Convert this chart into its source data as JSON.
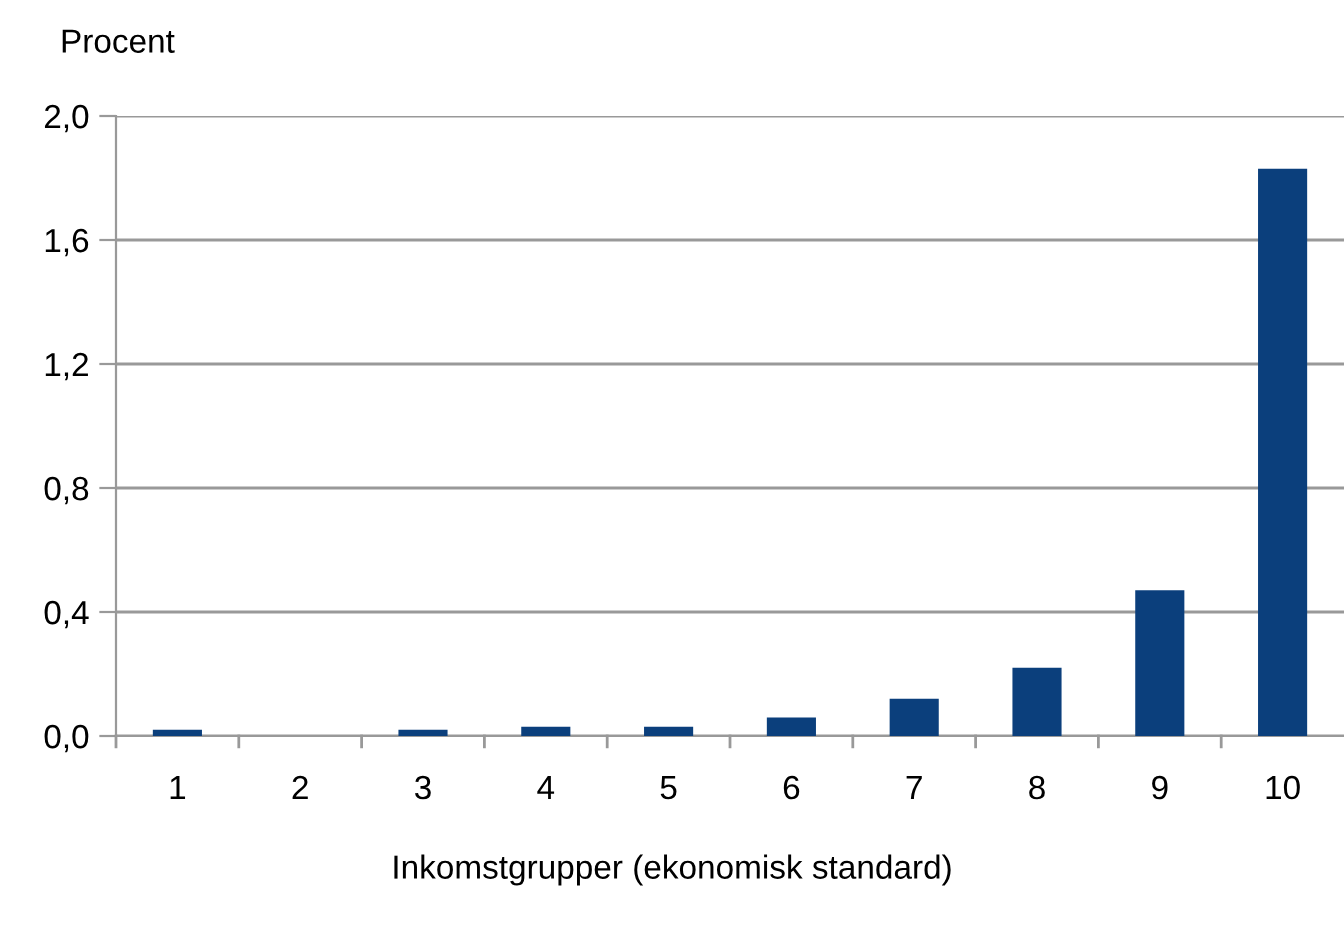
{
  "chart_data": {
    "type": "bar",
    "ylabel": "Procent",
    "xlabel": "Inkomstgrupper (ekonomisk standard)",
    "categories": [
      "1",
      "2",
      "3",
      "4",
      "5",
      "6",
      "7",
      "8",
      "9",
      "10"
    ],
    "values": [
      0.02,
      0.0,
      0.02,
      0.03,
      0.03,
      0.06,
      0.12,
      0.22,
      0.47,
      1.83
    ],
    "color": "#0b3f7c",
    "ylim": [
      0,
      2.0
    ],
    "yticks": [
      {
        "value": 0,
        "label": "0,0"
      },
      {
        "value": 0.4,
        "label": "0,4"
      },
      {
        "value": 0.8,
        "label": "0,8"
      },
      {
        "value": 1.2,
        "label": "1,2"
      },
      {
        "value": 1.6,
        "label": "1,6"
      },
      {
        "value": 2.0,
        "label": "2,0"
      }
    ],
    "grid": "y"
  }
}
